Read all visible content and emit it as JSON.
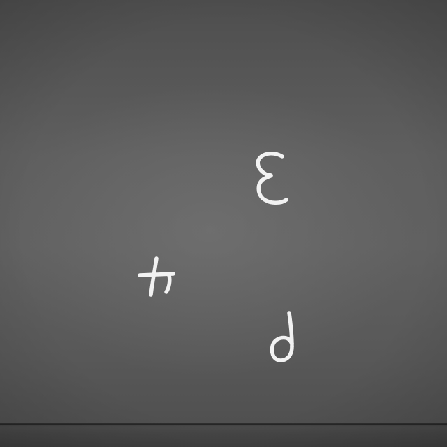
{
  "board": {
    "surface": "chalkboard",
    "surface_color": "#5e5e5e",
    "chalk_color": "#f2f2f2",
    "marks": [
      {
        "name": "mirrored-three",
        "text": "3"
      },
      {
        "name": "mirrored-four",
        "text": "4"
      },
      {
        "name": "mirrored-six",
        "text": "6"
      }
    ]
  }
}
